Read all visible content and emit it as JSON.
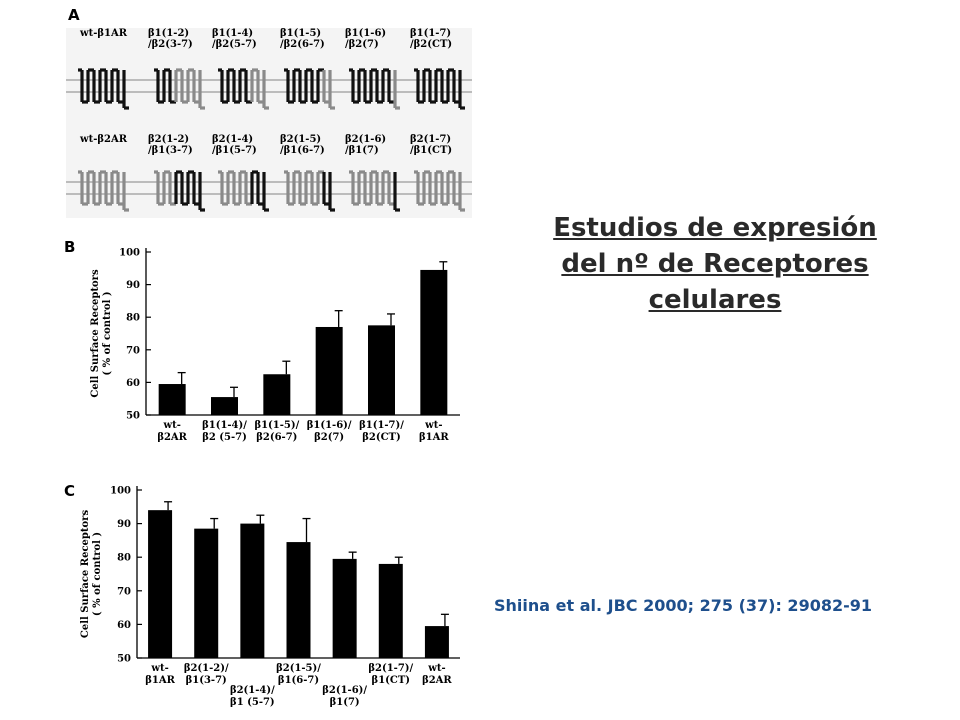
{
  "title_lines": [
    "Estudios de expresión",
    "del nº de Receptores",
    "celulares"
  ],
  "citation": "Shiina et al. JBC 2000; 275 (37): 29082-91",
  "panel_a": {
    "letter": "A",
    "rows": [
      {
        "base": "b1",
        "constructs": [
          {
            "label": [
              "wt-β1AR"
            ],
            "pattern": "AAAAAAAA"
          },
          {
            "label": [
              "β1(1-2)",
              "/β2(3-7)"
            ],
            "pattern": "AAABBBBB"
          },
          {
            "label": [
              "β1(1-4)",
              "/β2(5-7)"
            ],
            "pattern": "AAAAABBB"
          },
          {
            "label": [
              "β1(1-5)",
              "/β2(6-7)"
            ],
            "pattern": "AAAAAABB"
          },
          {
            "label": [
              "β1(1-6)",
              "/β2(7)"
            ],
            "pattern": "AAAAAAAB"
          },
          {
            "label": [
              "β1(1-7)",
              "/β2(CT)"
            ],
            "pattern": "AAAAAAAA"
          }
        ]
      },
      {
        "base": "b2",
        "constructs": [
          {
            "label": [
              "wt-β2AR"
            ],
            "pattern": "BBBBBBBB"
          },
          {
            "label": [
              "β2(1-2)",
              "/β1(3-7)"
            ],
            "pattern": "BBBAAAAA"
          },
          {
            "label": [
              "β2(1-4)",
              "/β1(5-7)"
            ],
            "pattern": "BBBBBAAA"
          },
          {
            "label": [
              "β2(1-5)",
              "/β1(6-7)"
            ],
            "pattern": "BBBBBBAA"
          },
          {
            "label": [
              "β2(1-6)",
              "/β1(7)"
            ],
            "pattern": "BBBBBBBA"
          },
          {
            "label": [
              "β2(1-7)",
              "/β1(CT)"
            ],
            "pattern": "BBBBBBBB"
          }
        ]
      }
    ],
    "colors": {
      "b1": "#111111",
      "b2": "#8a8a8a",
      "membrane": "#9a9a9a"
    }
  },
  "chart_data": [
    {
      "type": "bar",
      "panel": "B",
      "ylabel": [
        "Cell Surface Receptors",
        "( % of control )"
      ],
      "ylim": [
        50,
        100
      ],
      "yticks": [
        50,
        60,
        70,
        80,
        90,
        100
      ],
      "grid": false,
      "categories": [
        [
          "wt-",
          "β2AR"
        ],
        [
          "β1(1-4)/",
          "β2 (5-7)"
        ],
        [
          "β1(1-5)/",
          "β2(6-7)"
        ],
        [
          "β1(1-6)/",
          "β2(7)"
        ],
        [
          "β1(1-7)/",
          "β2(CT)"
        ],
        [
          "wt-",
          "β1AR"
        ]
      ],
      "values": [
        59.5,
        55.5,
        62.5,
        77,
        77.5,
        94.5
      ],
      "errors": [
        3.5,
        3,
        4,
        5,
        3.5,
        2.5
      ],
      "bar_color": "#000000"
    },
    {
      "type": "bar",
      "panel": "C",
      "ylabel": [
        "Cell Surface Receptors",
        "( % of control )"
      ],
      "ylim": [
        50,
        100
      ],
      "yticks": [
        50,
        60,
        70,
        80,
        90,
        100
      ],
      "grid": false,
      "categories": [
        [
          "wt-",
          "β1AR"
        ],
        [
          "β2(1-2)/",
          "β1(3-7)"
        ],
        [
          "β2(1-4)/",
          "β1 (5-7)"
        ],
        [
          "β2(1-5)/",
          "β1(6-7)"
        ],
        [
          "β2(1-6)/",
          "β1(7)"
        ],
        [
          "β2(1-7)/",
          "β1(CT)"
        ],
        [
          "wt-",
          "β2AR"
        ]
      ],
      "label_rows": [
        0,
        0,
        1,
        0,
        1,
        0,
        0
      ],
      "values": [
        94,
        88.5,
        90,
        84.5,
        79.5,
        78,
        59.5
      ],
      "errors": [
        2.5,
        3,
        2.5,
        7,
        2,
        2,
        3.5
      ],
      "bar_color": "#000000"
    }
  ]
}
